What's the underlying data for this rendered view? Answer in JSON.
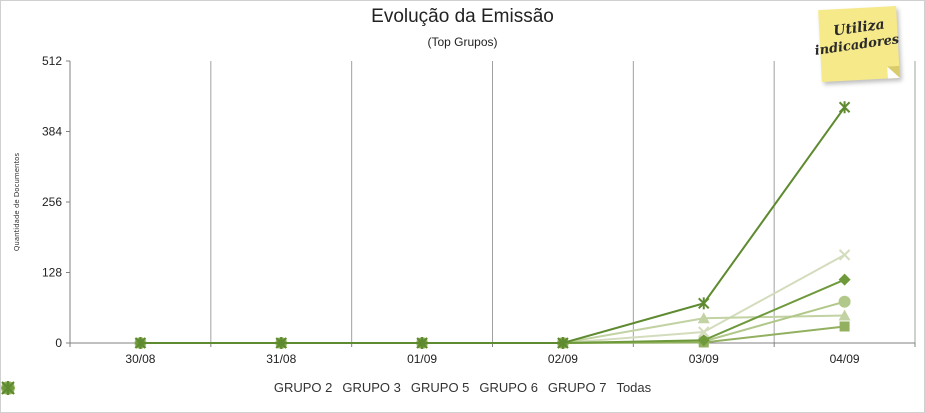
{
  "chart_data": {
    "type": "line",
    "title": "Evolução da Emissão",
    "subtitle": "(Top Grupos)",
    "xlabel": "",
    "ylabel": "Quantidade de Documentos",
    "categories": [
      "30/08",
      "31/08",
      "01/09",
      "02/09",
      "03/09",
      "04/09"
    ],
    "yticks": [
      0,
      128,
      256,
      384,
      512
    ],
    "ylim": [
      0,
      512
    ],
    "grid": "vertical",
    "legend": "bottom",
    "series": [
      {
        "name": "GRUPO 2",
        "marker": "x",
        "color": "#d3dcbc",
        "values": [
          0,
          0,
          0,
          0,
          20,
          160
        ]
      },
      {
        "name": "GRUPO 3",
        "marker": "triangle",
        "color": "#c2d2a2",
        "values": [
          0,
          0,
          0,
          0,
          45,
          50
        ]
      },
      {
        "name": "GRUPO 5",
        "marker": "circle",
        "color": "#b1c88a",
        "values": [
          0,
          0,
          0,
          0,
          3,
          75
        ]
      },
      {
        "name": "GRUPO 6",
        "marker": "square",
        "color": "#92b060",
        "values": [
          0,
          0,
          0,
          0,
          1,
          30
        ]
      },
      {
        "name": "GRUPO 7",
        "marker": "diamond",
        "color": "#6e9a3c",
        "values": [
          0,
          0,
          0,
          0,
          5,
          115
        ]
      },
      {
        "name": "Todas",
        "marker": "asterisk",
        "color": "#5e8a30",
        "values": [
          0,
          0,
          0,
          0,
          72,
          428
        ]
      }
    ]
  },
  "badge": {
    "line1": "Utiliza",
    "line2": "indicadores"
  }
}
